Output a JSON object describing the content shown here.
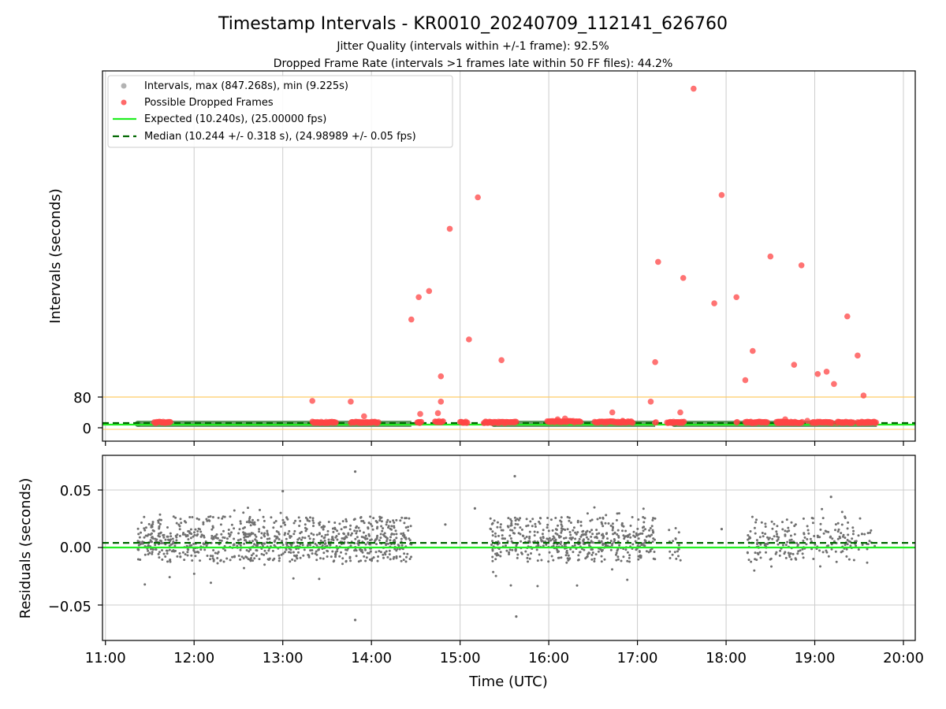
{
  "figure": {
    "title": "Timestamp Intervals - KR0010_20240709_112141_626760",
    "subtitle_1": "Jitter Quality (intervals within +/-1 frame): 92.5%",
    "subtitle_2": "Dropped Frame Rate (intervals >1 frames late within 50 FF files): 44.2%"
  },
  "chart_data": [
    {
      "type": "scatter",
      "panel": "top",
      "ylabel": "Intervals (seconds)",
      "x_range": [
        "10:58",
        "20:08"
      ],
      "y_ticks": [
        0,
        80
      ],
      "y_tick_labels": [
        "0",
        "80"
      ],
      "grid": "x-only",
      "legend_position": "top-left",
      "threshold_line": {
        "y": 80,
        "color": "#ffcc66"
      },
      "colors": {
        "intervals": "#999999",
        "dropped": "#ff4444",
        "expected": "#22ee22",
        "median": "#006600",
        "band": "#4e8a4e"
      },
      "series": [
        {
          "name": "Intervals, max (847.268s), min (9.225s)"
        },
        {
          "name": "Possible Dropped Frames"
        },
        {
          "name": "Expected (10.240s), (25.00000 fps)",
          "y": 10.24
        },
        {
          "name": "Median (10.244 +/- 0.318 s), (24.98989 +/- 0.05 fps)",
          "y": 10.244
        }
      ],
      "normal_segments": [
        [
          "11:22",
          "14:27"
        ],
        [
          "15:23",
          "17:12"
        ],
        [
          "17:25",
          "19:42"
        ]
      ],
      "dropped_points": [
        {
          "t": "14:27",
          "y": 282
        },
        {
          "t": "14:32",
          "y": 340
        },
        {
          "t": "14:39",
          "y": 356
        },
        {
          "t": "14:47",
          "y": 134
        },
        {
          "t": "14:53",
          "y": 518
        },
        {
          "t": "15:06",
          "y": 230
        },
        {
          "t": "15:12",
          "y": 600
        },
        {
          "t": "15:28",
          "y": 176
        },
        {
          "t": "17:12",
          "y": 171
        },
        {
          "t": "17:14",
          "y": 432
        },
        {
          "t": "17:31",
          "y": 390
        },
        {
          "t": "17:38",
          "y": 883
        },
        {
          "t": "17:52",
          "y": 324
        },
        {
          "t": "17:57",
          "y": 606
        },
        {
          "t": "18:07",
          "y": 340
        },
        {
          "t": "18:13",
          "y": 124
        },
        {
          "t": "18:18",
          "y": 200
        },
        {
          "t": "18:30",
          "y": 446
        },
        {
          "t": "18:46",
          "y": 164
        },
        {
          "t": "18:51",
          "y": 423
        },
        {
          "t": "19:02",
          "y": 140
        },
        {
          "t": "19:08",
          "y": 146
        },
        {
          "t": "19:13",
          "y": 114
        },
        {
          "t": "19:22",
          "y": 290
        },
        {
          "t": "19:29",
          "y": 188
        },
        {
          "t": "19:33",
          "y": 84
        },
        {
          "t": "13:20",
          "y": 70
        },
        {
          "t": "13:46",
          "y": 68
        },
        {
          "t": "13:55",
          "y": 30
        },
        {
          "t": "14:47",
          "y": 68
        },
        {
          "t": "14:45",
          "y": 38
        },
        {
          "t": "14:33",
          "y": 36
        },
        {
          "t": "17:09",
          "y": 68
        },
        {
          "t": "17:29",
          "y": 40
        },
        {
          "t": "16:43",
          "y": 40
        },
        {
          "t": "16:50",
          "y": 18
        },
        {
          "t": "16:06",
          "y": 22
        },
        {
          "t": "16:11",
          "y": 24
        },
        {
          "t": "18:40",
          "y": 22
        },
        {
          "t": "18:55",
          "y": 18
        }
      ],
      "dropped_clusters": [
        {
          "start": "11:33",
          "end": "11:44",
          "y": 12
        },
        {
          "start": "13:20",
          "end": "13:36",
          "y": 12
        },
        {
          "start": "13:46",
          "end": "14:05",
          "y": 12
        },
        {
          "start": "14:31",
          "end": "14:34",
          "y": 12
        },
        {
          "start": "14:43",
          "end": "14:49",
          "y": 14
        },
        {
          "start": "15:00",
          "end": "15:05",
          "y": 12
        },
        {
          "start": "15:16",
          "end": "15:38",
          "y": 12
        },
        {
          "start": "15:59",
          "end": "16:22",
          "y": 14
        },
        {
          "start": "16:31",
          "end": "16:57",
          "y": 13
        },
        {
          "start": "17:12",
          "end": "17:13",
          "y": 12
        },
        {
          "start": "17:20",
          "end": "17:32",
          "y": 12
        },
        {
          "start": "18:07",
          "end": "18:08",
          "y": 12
        },
        {
          "start": "18:13",
          "end": "18:28",
          "y": 12
        },
        {
          "start": "18:34",
          "end": "18:41",
          "y": 12
        },
        {
          "start": "18:35",
          "end": "18:52",
          "y": 12
        },
        {
          "start": "18:58",
          "end": "19:12",
          "y": 12
        },
        {
          "start": "19:15",
          "end": "19:26",
          "y": 12
        },
        {
          "start": "19:29",
          "end": "19:36",
          "y": 12
        },
        {
          "start": "19:36",
          "end": "19:42",
          "y": 12
        }
      ]
    },
    {
      "type": "scatter",
      "panel": "bottom",
      "xlabel": "Time (UTC)",
      "ylabel": "Residuals (seconds)",
      "x_range": [
        "10:58",
        "20:08"
      ],
      "x_ticks": [
        "11:00",
        "12:00",
        "13:00",
        "14:00",
        "15:00",
        "16:00",
        "17:00",
        "18:00",
        "19:00",
        "20:00"
      ],
      "ylim": [
        -0.08,
        0.08
      ],
      "y_ticks": [
        -0.05,
        0.0,
        0.05
      ],
      "y_tick_labels": [
        "−0.05",
        "0.00",
        "0.05"
      ],
      "grid": "both",
      "expected_line": 0.0,
      "median_line": 0.004,
      "colors": {
        "points": "#707070",
        "expected": "#22ee22",
        "median": "#006600"
      },
      "point_segments": [
        {
          "start": "11:22",
          "end": "14:27",
          "density": 900
        },
        {
          "start": "15:20",
          "end": "17:12",
          "density": 520
        },
        {
          "start": "17:20",
          "end": "17:30",
          "density": 18
        },
        {
          "start": "18:14",
          "end": "19:42",
          "density": 230
        }
      ],
      "outliers": [
        {
          "t": "13:49",
          "y": 0.066
        },
        {
          "t": "13:49",
          "y": -0.063
        },
        {
          "t": "15:37",
          "y": 0.062
        },
        {
          "t": "15:38",
          "y": -0.06
        },
        {
          "t": "13:00",
          "y": 0.049
        },
        {
          "t": "19:11",
          "y": 0.044
        },
        {
          "t": "14:50",
          "y": 0.02
        },
        {
          "t": "17:57",
          "y": 0.016
        },
        {
          "t": "15:10",
          "y": 0.034
        }
      ]
    }
  ]
}
